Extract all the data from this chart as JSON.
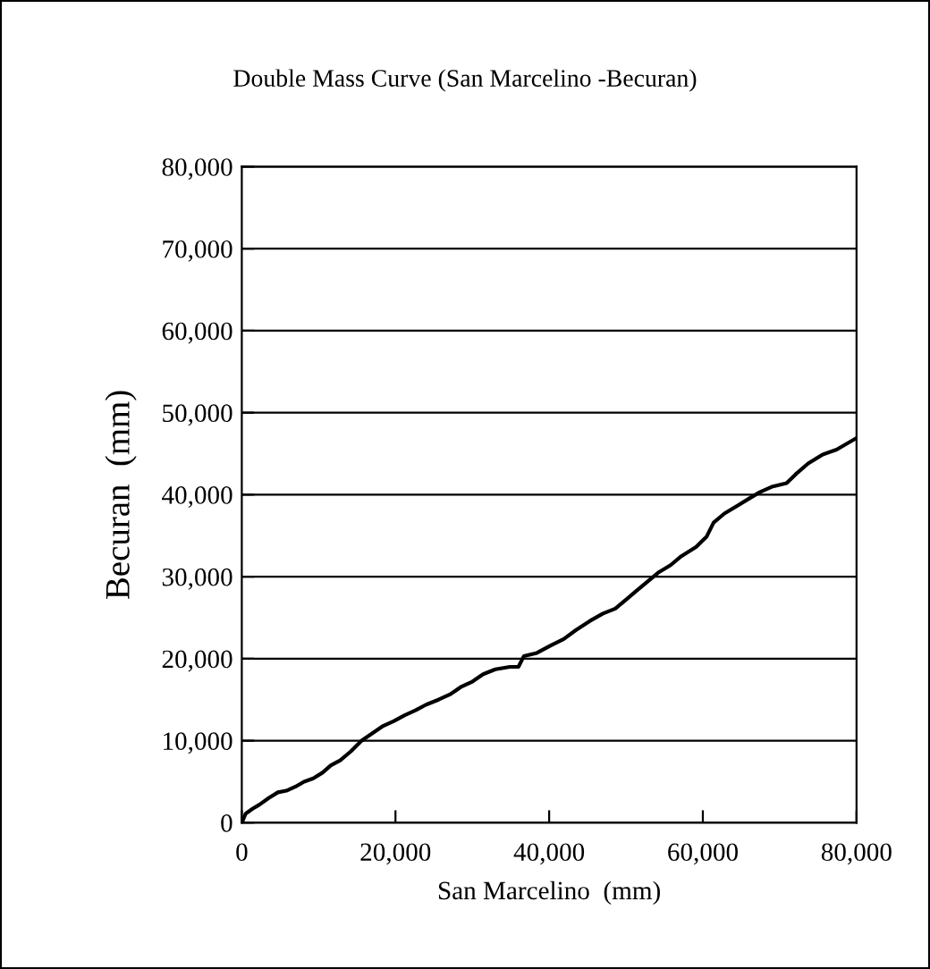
{
  "chart_data": {
    "type": "line",
    "title": "Double Mass Curve (San Marcelino -Becuran)",
    "xlabel": "San Marcelino  (mm)",
    "ylabel": "Becuran  (mm)",
    "series": [
      {
        "color": "#000000",
        "x": [
          0,
          500,
          1400,
          2300,
          3500,
          4700,
          5800,
          7000,
          8100,
          9300,
          10500,
          11600,
          12800,
          14200,
          15600,
          17000,
          18400,
          19800,
          21200,
          22600,
          24000,
          25600,
          27200,
          28600,
          30000,
          31400,
          33000,
          34900,
          36000,
          36700,
          38400,
          40200,
          41900,
          43500,
          45300,
          47000,
          48600,
          50000,
          51400,
          52800,
          54200,
          55800,
          57200,
          59100,
          60500,
          61400,
          62800,
          64400,
          65800,
          67400,
          69100,
          70900,
          72100,
          73700,
          75600,
          77400,
          79800
        ],
        "values": [
          0,
          1100,
          1700,
          2200,
          3000,
          3700,
          3900,
          4400,
          5000,
          5400,
          6100,
          7000,
          7600,
          8700,
          10000,
          10900,
          11800,
          12400,
          13100,
          13700,
          14400,
          15000,
          15700,
          16600,
          17200,
          18100,
          18700,
          19000,
          19000,
          20300,
          20700,
          21600,
          22400,
          23500,
          24600,
          25500,
          26100,
          27200,
          28300,
          29400,
          30500,
          31400,
          32500,
          33600,
          34900,
          36600,
          37700,
          38600,
          39400,
          40300,
          41000,
          41400,
          42500,
          43800,
          44900,
          45500,
          46800
        ]
      }
    ],
    "xlim": [
      0,
      80000
    ],
    "ylim": [
      0,
      80000
    ],
    "xticks": [
      0,
      {
        "value": 20000,
        "label": "20,000"
      },
      {
        "value": 40000,
        "label": "40,000"
      },
      {
        "value": 60000,
        "label": "60,000"
      },
      {
        "value": 80000,
        "label": "80,000"
      }
    ],
    "yticks": [
      0,
      {
        "value": 10000,
        "label": "10,000"
      },
      {
        "value": 20000,
        "label": "20,000"
      },
      {
        "value": 30000,
        "label": "30,000"
      },
      {
        "value": 40000,
        "label": "40,000"
      },
      {
        "value": 50000,
        "label": "50,000"
      },
      {
        "value": 60000,
        "label": "60,000"
      },
      {
        "value": 70000,
        "label": "70,000"
      },
      {
        "value": 80000,
        "label": "80,000"
      }
    ],
    "grid": "y",
    "line_style": "solid",
    "marker": "none",
    "legend": false
  }
}
